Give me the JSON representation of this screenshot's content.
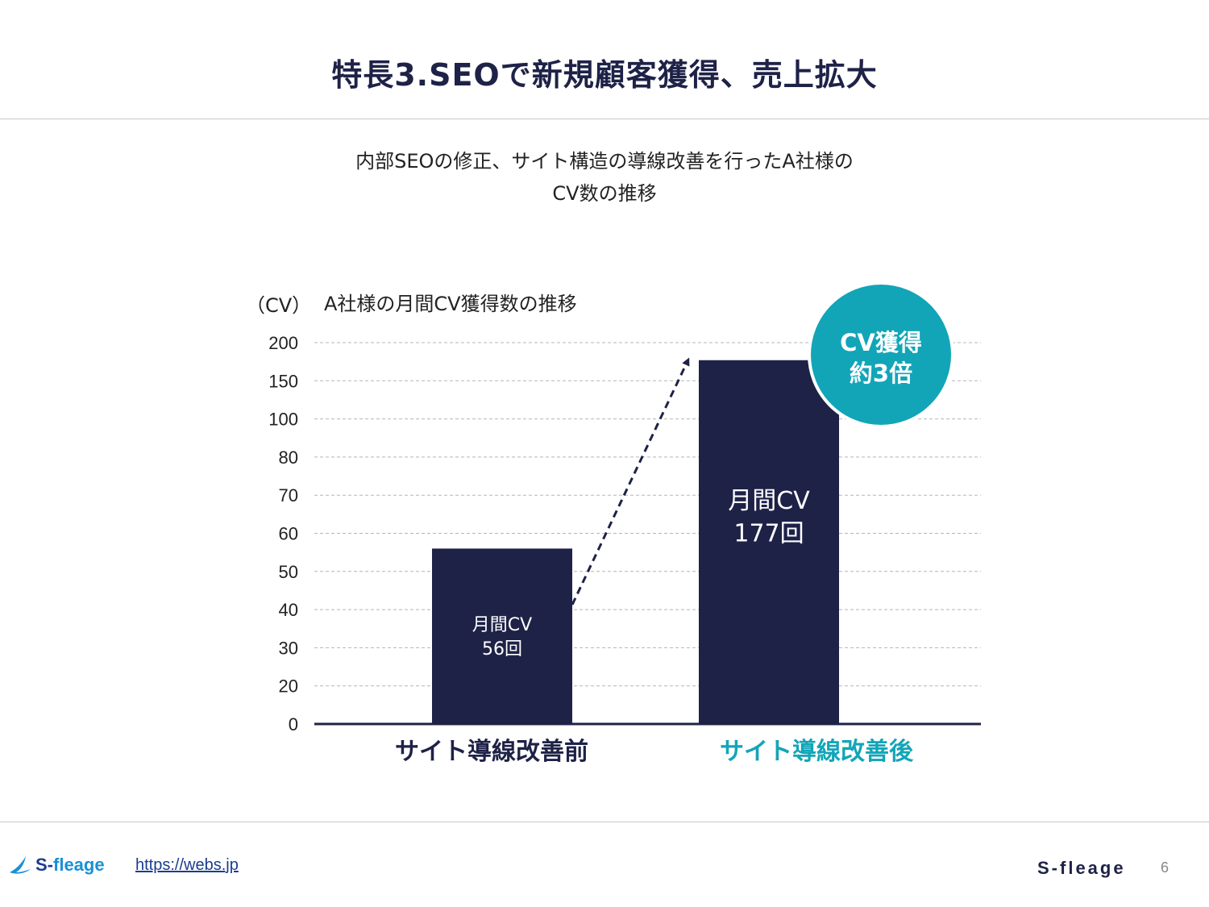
{
  "header": {
    "title": "特長3.SEOで新規顧客獲得、売上拡大"
  },
  "subtitle": {
    "line1": "内部SEOの修正、サイト構造の導線改善を行ったA社様の",
    "line2": "CV数の推移"
  },
  "chart_data": {
    "type": "bar",
    "title": "A社様の月間CV獲得数の推移",
    "ylabel": "（CV）",
    "xlabel": "",
    "y_ticks": [
      "0",
      "20",
      "30",
      "40",
      "50",
      "60",
      "70",
      "80",
      "100",
      "150",
      "200"
    ],
    "categories": [
      "サイト導線改善前",
      "サイト導線改善後"
    ],
    "values": [
      56,
      177
    ],
    "bar_labels": [
      {
        "line1": "月間CV",
        "line2": "56回"
      },
      {
        "line1": "月間CV",
        "line2": "177回"
      }
    ],
    "category_colors": [
      "#1e2247",
      "#12a5b8"
    ],
    "bar_color": "#1e2247",
    "grid": true,
    "grid_style": "dashed",
    "callout": {
      "line1": "CV獲得",
      "line2": "約3倍",
      "color": "#12a5b8"
    }
  },
  "footer": {
    "logo_text_a": "S-",
    "logo_text_b": "fleage",
    "link": "https://webs.jp",
    "brand": "S-fleage",
    "page": "6"
  }
}
